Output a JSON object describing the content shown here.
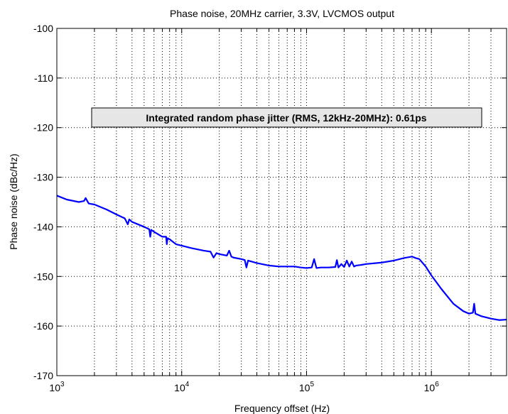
{
  "chart_data": {
    "type": "line",
    "title": "Phase noise, 20MHz carrier, 3.3V, LVCMOS output",
    "xlabel": "Frequency offset (Hz)",
    "ylabel": "Phase noise (dBc/Hz)",
    "x_scale": "log",
    "xlim": [
      1000,
      4000000
    ],
    "ylim": [
      -170,
      -100
    ],
    "y_ticks": [
      -100,
      -110,
      -120,
      -130,
      -140,
      -150,
      -160,
      -170
    ],
    "y_tick_labels": [
      "-100",
      "-110",
      "-120",
      "-130",
      "-140",
      "-150",
      "-160",
      "-170"
    ],
    "x_ticks": [
      1000,
      10000,
      100000,
      1000000
    ],
    "x_tick_labels": [
      {
        "base": "10",
        "exp": "3"
      },
      {
        "base": "10",
        "exp": "4"
      },
      {
        "base": "10",
        "exp": "5"
      },
      {
        "base": "10",
        "exp": "6"
      }
    ],
    "grid": true,
    "annotation": "Integrated random phase jitter (RMS, 12kHz-20MHz): 0.61ps",
    "colors": {
      "line": "#0000ff",
      "annotation_bg": "#e6e6e6",
      "grid": "#000000"
    },
    "series": [
      {
        "x": [
          1000,
          1200,
          1500,
          1650,
          1700,
          1800,
          2000,
          2500,
          3000,
          3500,
          3700,
          3800,
          4000,
          5000,
          5500,
          5600,
          5700,
          6000,
          7000,
          7500,
          7600,
          7700,
          8000,
          9000,
          10000,
          12000,
          15000,
          17000,
          18000,
          19000,
          20000,
          23000,
          24000,
          25000,
          26000,
          30000,
          32000,
          33000,
          34000,
          40000,
          50000,
          60000,
          70000,
          80000,
          90000,
          100000,
          110000,
          115000,
          120000,
          130000,
          150000,
          170000,
          175000,
          180000,
          190000,
          200000,
          210000,
          220000,
          230000,
          240000,
          250000,
          270000,
          300000,
          400000,
          500000,
          600000,
          700000,
          750000,
          800000,
          900000,
          1000000,
          1200000,
          1500000,
          1800000,
          2000000,
          2150000,
          2200000,
          2250000,
          2500000,
          3000000,
          3500000,
          4000000
        ],
        "y": [
          -133.7,
          -134.5,
          -135,
          -134.8,
          -134.2,
          -135.3,
          -135.5,
          -136.5,
          -137.5,
          -138.3,
          -139.5,
          -138.5,
          -139,
          -140,
          -140.5,
          -142,
          -140.6,
          -141,
          -142,
          -142,
          -143.5,
          -142.3,
          -142.5,
          -143.5,
          -143.8,
          -144.3,
          -144.8,
          -145,
          -146.2,
          -145.3,
          -145.5,
          -145.8,
          -144.8,
          -146,
          -146.2,
          -146.5,
          -146.7,
          -148.2,
          -146.8,
          -147.3,
          -147.8,
          -148,
          -148,
          -148,
          -148.2,
          -148.3,
          -148.2,
          -146.5,
          -148.3,
          -148.2,
          -148.2,
          -148.1,
          -146.7,
          -148.2,
          -147.5,
          -148.1,
          -146.8,
          -148,
          -147,
          -148,
          -147.8,
          -147.7,
          -147.5,
          -147.2,
          -146.8,
          -146.3,
          -146,
          -146.3,
          -146.5,
          -148,
          -149.8,
          -152.5,
          -155.5,
          -157,
          -157.5,
          -157.3,
          -155.5,
          -157.5,
          -158,
          -158.5,
          -158.8,
          -158.7
        ]
      }
    ]
  }
}
